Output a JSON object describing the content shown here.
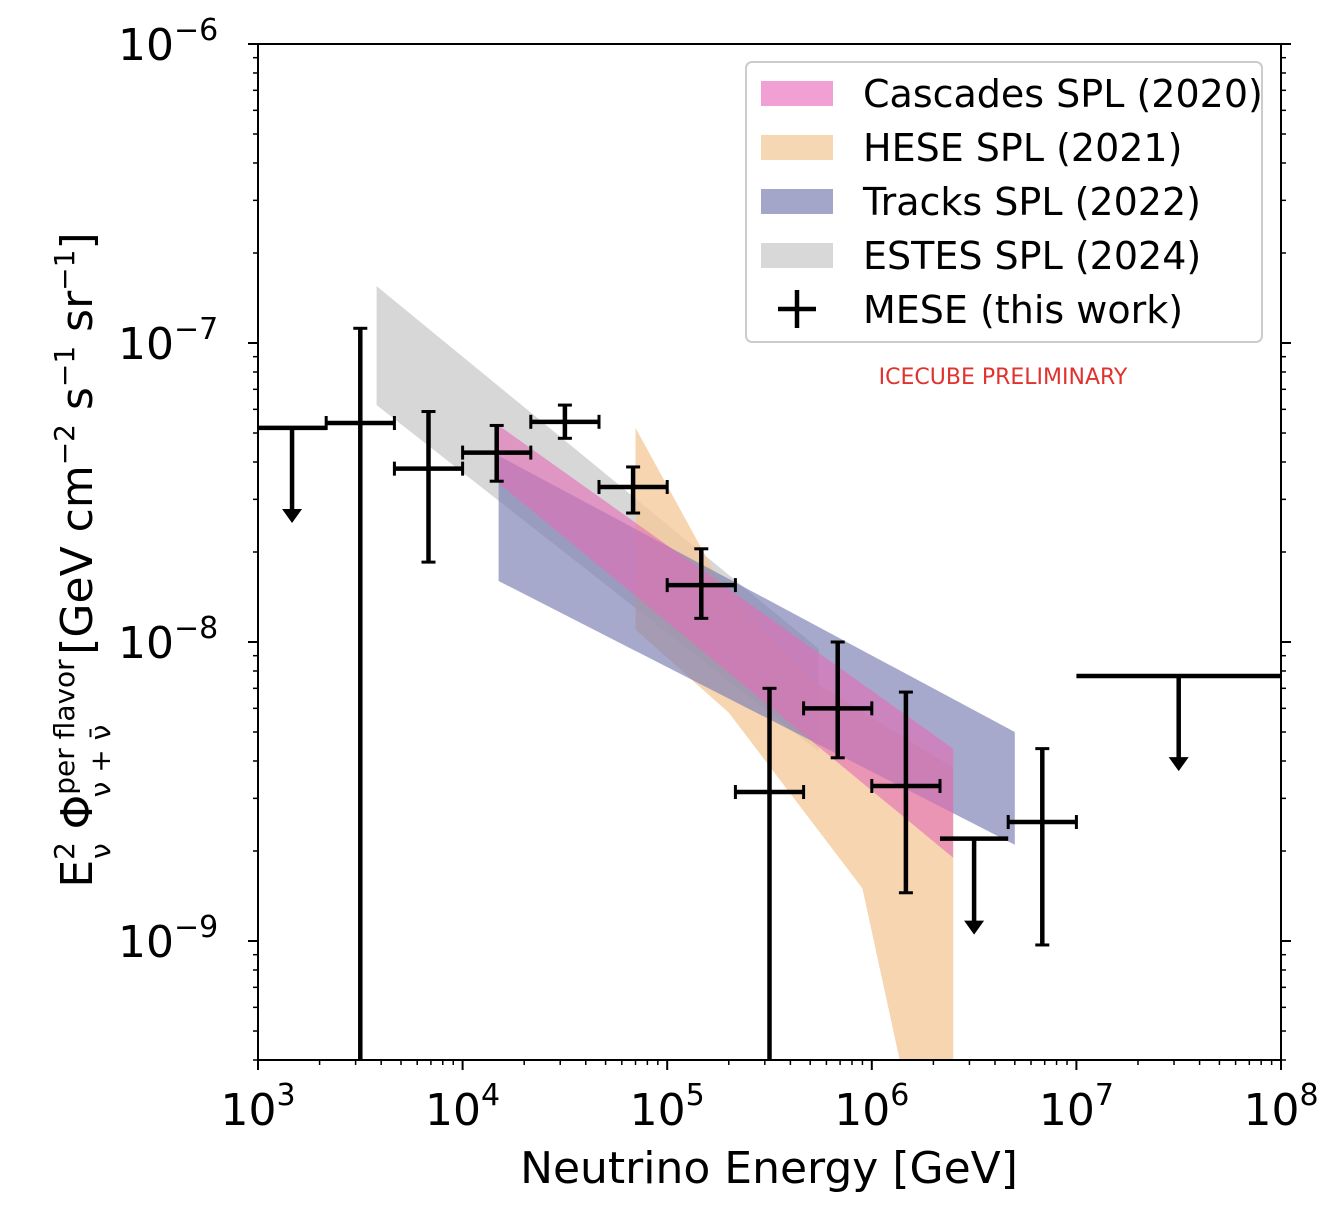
{
  "chart_data": {
    "type": "scatter",
    "xscale": "log",
    "yscale": "log",
    "xlim": [
      1000,
      100000000
    ],
    "ylim": [
      4e-10,
      1e-06
    ],
    "xlabel": "Neutrino Energy [GeV]",
    "ylabel": {
      "prefix": "E",
      "e_sup": "2",
      "e_sub": "ν",
      "phi": " Φ",
      "phi_sup": "per flavor",
      "phi_sub": "ν + ν̄",
      "units": "[GeV cm",
      "u1_sup": "−2",
      "u2": " s",
      "u2_sup": "−1",
      "u3": " sr",
      "u3_sup": "−1",
      "close": "]"
    },
    "xticks": [
      {
        "value": 1000,
        "base": "10",
        "exp": "3"
      },
      {
        "value": 10000,
        "base": "10",
        "exp": "4"
      },
      {
        "value": 100000,
        "base": "10",
        "exp": "5"
      },
      {
        "value": 1000000,
        "base": "10",
        "exp": "6"
      },
      {
        "value": 10000000,
        "base": "10",
        "exp": "7"
      },
      {
        "value": 100000000,
        "base": "10",
        "exp": "8"
      }
    ],
    "yticks": [
      {
        "value": 1e-09,
        "base": "10",
        "exp": "−9"
      },
      {
        "value": 1e-08,
        "base": "10",
        "exp": "−8"
      },
      {
        "value": 1e-07,
        "base": "10",
        "exp": "−7"
      },
      {
        "value": 1e-06,
        "base": "10",
        "exp": "−6"
      }
    ],
    "annotation": {
      "text": "ICECUBE PRELIMINARY",
      "color": "#e0322e"
    },
    "bands": [
      {
        "name": "ESTES SPL (2024)",
        "color": "#cccccc",
        "opacity": 0.78,
        "polygon": [
          [
            3800,
            1.55e-07
          ],
          [
            550000,
            9.5e-09
          ],
          [
            550000,
            4.3e-09
          ],
          [
            3800,
            6.2e-08
          ]
        ]
      },
      {
        "name": "HESE SPL (2021)",
        "color": "#f5c99a",
        "opacity": 0.78,
        "polygon": [
          [
            70000,
            5.2e-08
          ],
          [
            180000,
            1.6e-08
          ],
          [
            500000,
            7.5e-09
          ],
          [
            2500000,
            3.8e-09
          ],
          [
            2500000,
            3e-10
          ],
          [
            1500000,
            3e-10
          ],
          [
            900000,
            1.5e-09
          ],
          [
            200000,
            5.8e-09
          ],
          [
            70000,
            1.1e-08
          ]
        ]
      },
      {
        "name": "Tracks SPL (2022)",
        "color": "#7d80b4",
        "opacity": 0.68,
        "polygon": [
          [
            15000,
            4.2e-08
          ],
          [
            5000000,
            5e-09
          ],
          [
            5000000,
            2.1e-09
          ],
          [
            15000,
            1.6e-08
          ]
        ]
      },
      {
        "name": "Cascades SPL (2020)",
        "color": "#e46eb6",
        "opacity": 0.62,
        "polygon": [
          [
            15000,
            5.3e-08
          ],
          [
            2500000,
            4.4e-09
          ],
          [
            2500000,
            1.9e-09
          ],
          [
            15000,
            3.4e-08
          ]
        ]
      }
    ],
    "points": [
      {
        "x": 3162,
        "xlo": 2154,
        "xhi": 4642,
        "y": 5.4e-08,
        "ylo": 4e-10,
        "yhi": 1.12e-07
      },
      {
        "x": 6813,
        "xlo": 4642,
        "xhi": 10000,
        "y": 3.8e-08,
        "ylo": 1.85e-08,
        "yhi": 5.9e-08
      },
      {
        "x": 14678,
        "xlo": 10000,
        "xhi": 21544,
        "y": 4.3e-08,
        "ylo": 3.45e-08,
        "yhi": 5.3e-08
      },
      {
        "x": 31623,
        "xlo": 21544,
        "xhi": 46416,
        "y": 5.45e-08,
        "ylo": 4.8e-08,
        "yhi": 6.2e-08
      },
      {
        "x": 68129,
        "xlo": 46416,
        "xhi": 100000,
        "y": 3.3e-08,
        "ylo": 2.7e-08,
        "yhi": 3.85e-08
      },
      {
        "x": 146780,
        "xlo": 100000,
        "xhi": 215443,
        "y": 1.55e-08,
        "ylo": 1.2e-08,
        "yhi": 2.05e-08
      },
      {
        "x": 316228,
        "xlo": 215443,
        "xhi": 464159,
        "y": 3.15e-09,
        "ylo": 4e-10,
        "yhi": 7e-09
      },
      {
        "x": 681292,
        "xlo": 464159,
        "xhi": 1000000,
        "y": 6e-09,
        "ylo": 4.1e-09,
        "yhi": 1e-08
      },
      {
        "x": 1467799,
        "xlo": 1000000,
        "xhi": 2154435,
        "y": 3.3e-09,
        "ylo": 1.45e-09,
        "yhi": 6.8e-09
      },
      {
        "x": 6812921,
        "xlo": 4641589,
        "xhi": 10000000,
        "y": 2.5e-09,
        "ylo": 9.7e-10,
        "yhi": 4.4e-09
      }
    ],
    "upper_limits": [
      {
        "x": 1467,
        "xlo": 1000,
        "xhi": 2154,
        "y": 5.2e-08,
        "arrow_to": 2.5e-08
      },
      {
        "x": 3162278,
        "xlo": 2154435,
        "xhi": 4641589,
        "y": 2.2e-09,
        "arrow_to": 1.05e-09
      },
      {
        "x": 31622777,
        "xlo": 10000000,
        "xhi": 100000000,
        "y": 7.7e-09,
        "arrow_to": 3.7e-09
      }
    ],
    "legend": {
      "position": "top-right",
      "entries": [
        {
          "label": "Cascades SPL (2020)",
          "kind": "patch",
          "color": "#f0a0d2"
        },
        {
          "label": "HESE SPL (2021)",
          "kind": "patch",
          "color": "#f6d7b4"
        },
        {
          "label": "Tracks SPL (2022)",
          "kind": "patch",
          "color": "#a3a5c9"
        },
        {
          "label": "ESTES SPL (2024)",
          "kind": "patch",
          "color": "#d8d8d8"
        },
        {
          "label": "MESE (this work)",
          "kind": "errorbar",
          "color": "#000000"
        }
      ]
    }
  }
}
